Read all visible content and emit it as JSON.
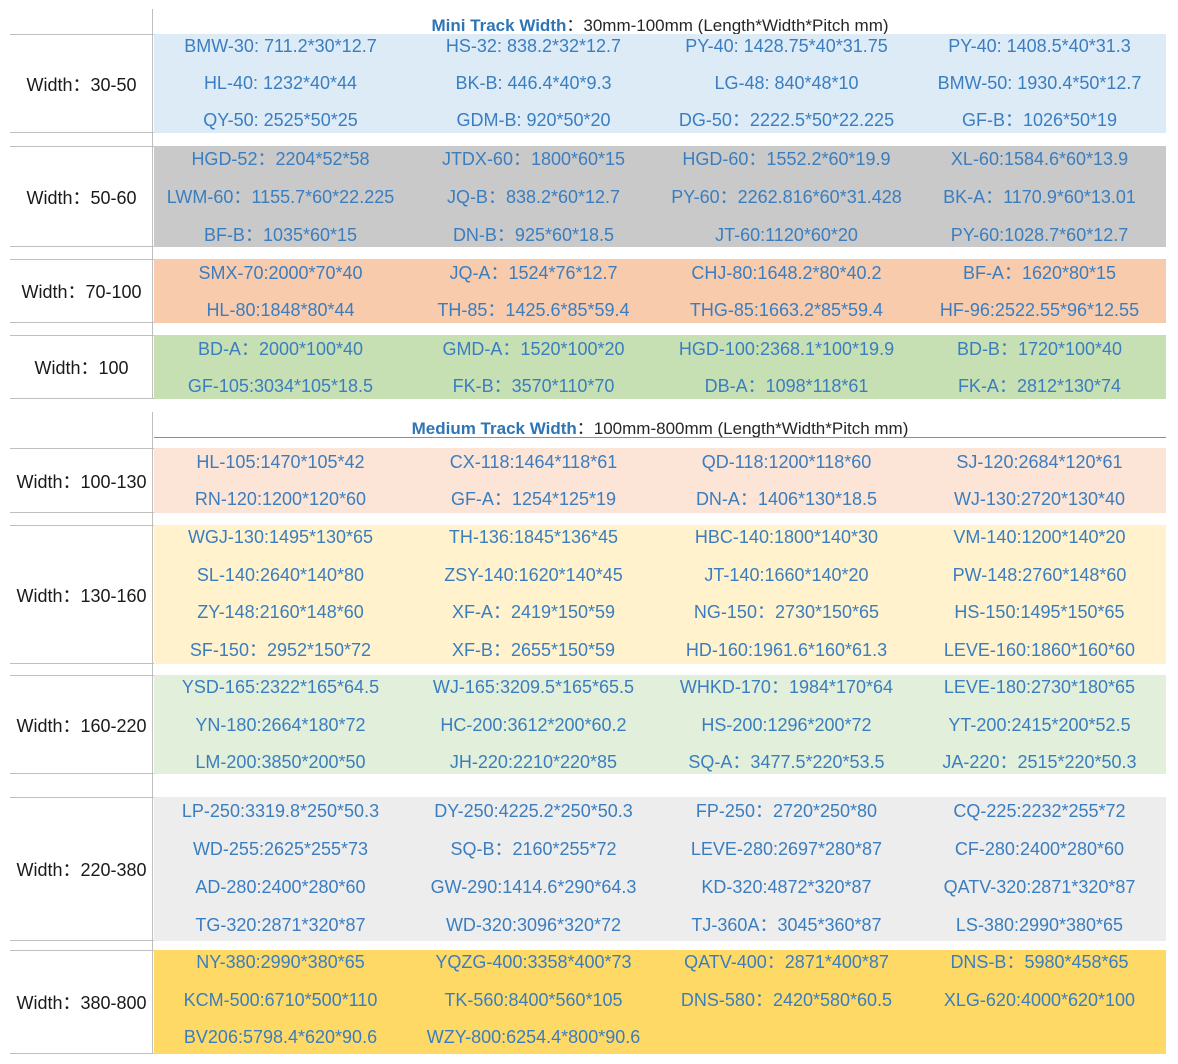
{
  "sections": [
    {
      "header_bold": "Mini Track Width",
      "header_rest": "：30mm-100mm  (Length*Width*Pitch mm)",
      "groups": [
        {
          "label": "Width：30-50",
          "color": "#ddebf7",
          "rows": [
            [
              "BMW-30: 711.2*30*12.7",
              "HS-32: 838.2*32*12.7",
              "PY-40: 1428.75*40*31.75",
              "PY-40: 1408.5*40*31.3"
            ],
            [
              "HL-40: 1232*40*44",
              "BK-B: 446.4*40*9.3",
              "LG-48: 840*48*10",
              "BMW-50: 1930.4*50*12.7"
            ],
            [
              "QY-50: 2525*50*25",
              "GDM-B: 920*50*20",
              "DG-50：2222.5*50*22.225",
              "GF-B：1026*50*19"
            ]
          ]
        },
        {
          "label": "Width：50-60",
          "color": "#c9c9c9",
          "rows": [
            [
              "HGD-52：2204*52*58",
              "JTDX-60：1800*60*15",
              "HGD-60：1552.2*60*19.9",
              "XL-60:1584.6*60*13.9"
            ],
            [
              "LWM-60：1155.7*60*22.225",
              "JQ-B：838.2*60*12.7",
              "PY-60：2262.816*60*31.428",
              "BK-A：1170.9*60*13.01"
            ],
            [
              "BF-B：1035*60*15",
              "DN-B：925*60*18.5",
              "JT-60:1120*60*20",
              "PY-60:1028.7*60*12.7"
            ]
          ]
        },
        {
          "label": "Width：70-100",
          "color": "#f8cbad",
          "rows": [
            [
              "SMX-70:2000*70*40",
              "JQ-A：1524*76*12.7",
              "CHJ-80:1648.2*80*40.2",
              "BF-A：1620*80*15"
            ],
            [
              "HL-80:1848*80*44",
              "TH-85：1425.6*85*59.4",
              "THG-85:1663.2*85*59.4",
              "HF-96:2522.55*96*12.55"
            ]
          ]
        },
        {
          "label": "Width：100",
          "color": "#c6e0b4",
          "rows": [
            [
              "BD-A：2000*100*40",
              "GMD-A：1520*100*20",
              "HGD-100:2368.1*100*19.9",
              "BD-B：1720*100*40"
            ],
            [
              "GF-105:3034*105*18.5",
              "FK-B：3570*110*70",
              "DB-A：1098*118*61",
              "FK-A：2812*130*74"
            ]
          ]
        }
      ]
    },
    {
      "header_bold": "Medium Track Width",
      "header_rest": "：100mm-800mm  (Length*Width*Pitch mm)",
      "groups": [
        {
          "label": "Width：100-130",
          "color": "#fce4d6",
          "rows": [
            [
              "HL-105:1470*105*42",
              "CX-118:1464*118*61",
              "QD-118:1200*118*60",
              "SJ-120:2684*120*61"
            ],
            [
              "RN-120:1200*120*60",
              "GF-A：1254*125*19",
              "DN-A：1406*130*18.5",
              "WJ-130:2720*130*40"
            ]
          ]
        },
        {
          "label": "Width：130-160",
          "color": "#fff2cc",
          "rows": [
            [
              "WGJ-130:1495*130*65",
              "TH-136:1845*136*45",
              "HBC-140:1800*140*30",
              "VM-140:1200*140*20"
            ],
            [
              "SL-140:2640*140*80",
              "ZSY-140:1620*140*45",
              "JT-140:1660*140*20",
              "PW-148:2760*148*60"
            ],
            [
              "ZY-148:2160*148*60",
              "XF-A：2419*150*59",
              "NG-150：2730*150*65",
              "HS-150:1495*150*65"
            ],
            [
              "SF-150：2952*150*72",
              "XF-B：2655*150*59",
              "HD-160:1961.6*160*61.3",
              "LEVE-160:1860*160*60"
            ]
          ]
        },
        {
          "label": "Width：160-220",
          "color": "#e2efda",
          "rows": [
            [
              "YSD-165:2322*165*64.5",
              "WJ-165:3209.5*165*65.5",
              "WHKD-170：1984*170*64",
              "LEVE-180:2730*180*65"
            ],
            [
              "YN-180:2664*180*72",
              "HC-200:3612*200*60.2",
              "HS-200:1296*200*72",
              "YT-200:2415*200*52.5"
            ],
            [
              "LM-200:3850*200*50",
              "JH-220:2210*220*85",
              "SQ-A：3477.5*220*53.5",
              "JA-220：2515*220*50.3"
            ]
          ]
        },
        {
          "label": "Width：220-380",
          "color": "#ededed",
          "rows": [
            [
              "LP-250:3319.8*250*50.3",
              "DY-250:4225.2*250*50.3",
              "FP-250：2720*250*80",
              "CQ-225:2232*255*72"
            ],
            [
              "WD-255:2625*255*73",
              "SQ-B：2160*255*72",
              "LEVE-280:2697*280*87",
              "CF-280:2400*280*60"
            ],
            [
              "AD-280:2400*280*60",
              "GW-290:1414.6*290*64.3",
              "KD-320:4872*320*87",
              "QATV-320:2871*320*87"
            ],
            [
              "TG-320:2871*320*87",
              "WD-320:3096*320*72",
              "TJ-360A：3045*360*87",
              "LS-380:2990*380*65"
            ]
          ]
        },
        {
          "label": "Width：380-800",
          "color": "#ffd966",
          "rows": [
            [
              "NY-380:2990*380*65",
              "YQZG-400:3358*400*73",
              "QATV-400：2871*400*87",
              "DNS-B：5980*458*65"
            ],
            [
              "KCM-500:6710*500*110",
              "TK-560:8400*560*105",
              "DNS-580：2420*580*60.5",
              "XLG-620:4000*620*100"
            ],
            [
              "BV206:5798.4*620*90.6",
              "WZY-800:6254.4*800*90.6",
              "",
              ""
            ]
          ]
        }
      ]
    }
  ]
}
